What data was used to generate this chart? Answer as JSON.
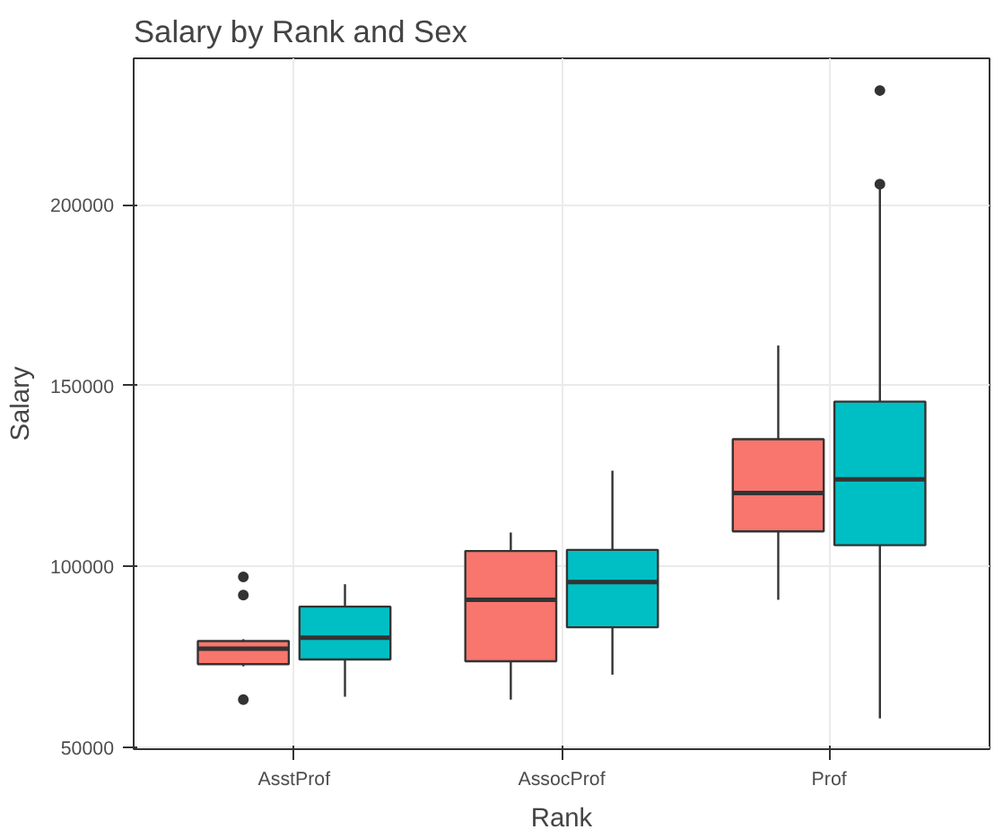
{
  "chart_data": {
    "type": "box",
    "title": "Salary by Rank and Sex",
    "xlabel": "Rank",
    "ylabel": "Salary",
    "categories": [
      "AsstProf",
      "AssocProf",
      "Prof"
    ],
    "series": [
      {
        "color": "#f8766d",
        "boxes": [
          {
            "low": 72400,
            "q1": 73000,
            "median": 77300,
            "q3": 79400,
            "high": 79900,
            "outliers": [
              97100,
              92100,
              63200
            ]
          },
          {
            "low": 63200,
            "q1": 73800,
            "median": 90800,
            "q3": 104300,
            "high": 109400
          },
          {
            "low": 90800,
            "q1": 109700,
            "median": 120300,
            "q3": 135200,
            "high": 161100
          }
        ]
      },
      {
        "color": "#00bfc4",
        "boxes": [
          {
            "low": 64000,
            "q1": 74300,
            "median": 80300,
            "q3": 88900,
            "high": 95100
          },
          {
            "low": 70100,
            "q1": 83200,
            "median": 95700,
            "q3": 104600,
            "high": 126500
          },
          {
            "low": 58000,
            "q1": 105900,
            "median": 124100,
            "q3": 145600,
            "high": 204700,
            "outliers": [
              231600,
              205700
            ]
          }
        ]
      }
    ],
    "ylim": [
      49500,
      240500
    ],
    "yticks": [
      50000,
      100000,
      150000,
      200000
    ],
    "grid": true
  }
}
